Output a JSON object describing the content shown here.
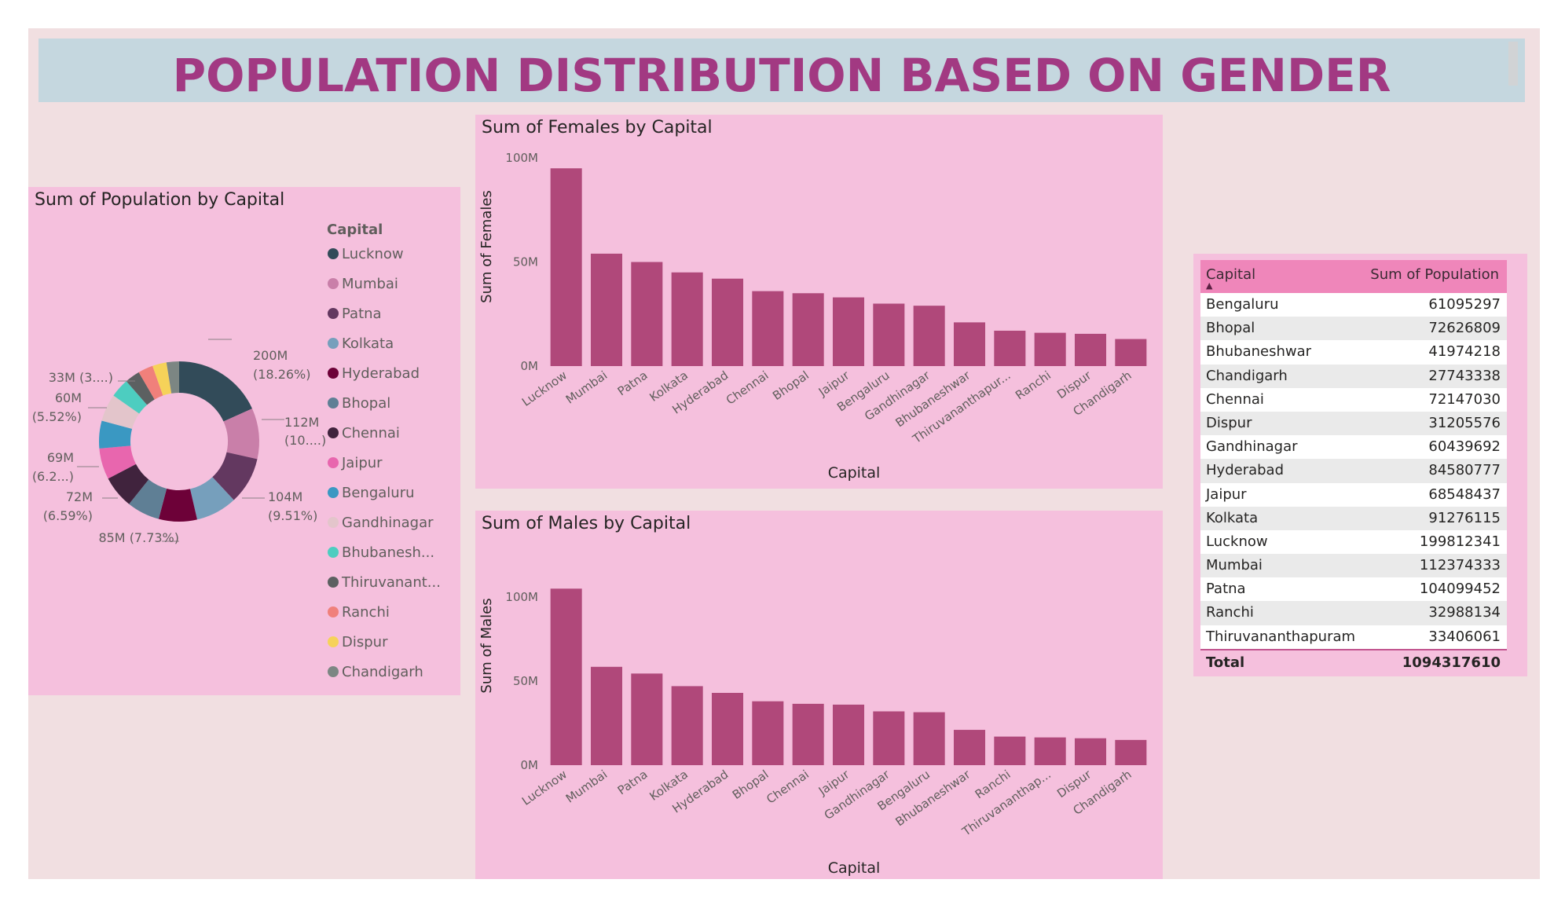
{
  "title": "POPULATION DISTRIBUTION BASED ON GENDER",
  "colors": {
    "bar": "#b0487a",
    "panel": "#f5c0dd",
    "canvas": "#f1dfe1",
    "title": "#a23982",
    "header": "#ef86ba"
  },
  "donut": {
    "title": "Sum of Population by Capital",
    "legend_title": "Capital"
  },
  "females": {
    "title": "Sum of Females by Capital",
    "xlabel": "Capital",
    "ylabel": "Sum of Females"
  },
  "males": {
    "title": "Sum of Males by Capital",
    "xlabel": "Capital",
    "ylabel": "Sum of Males"
  },
  "table": {
    "headers": [
      "Capital",
      "Sum of Population"
    ],
    "rows": [
      [
        "Bengaluru",
        "61095297"
      ],
      [
        "Bhopal",
        "72626809"
      ],
      [
        "Bhubaneshwar",
        "41974218"
      ],
      [
        "Chandigarh",
        "27743338"
      ],
      [
        "Chennai",
        "72147030"
      ],
      [
        "Dispur",
        "31205576"
      ],
      [
        "Gandhinagar",
        "60439692"
      ],
      [
        "Hyderabad",
        "84580777"
      ],
      [
        "Jaipur",
        "68548437"
      ],
      [
        "Kolkata",
        "91276115"
      ],
      [
        "Lucknow",
        "199812341"
      ],
      [
        "Mumbai",
        "112374333"
      ],
      [
        "Patna",
        "104099452"
      ],
      [
        "Ranchi",
        "32988134"
      ],
      [
        "Thiruvananthapuram",
        "33406061"
      ]
    ],
    "total_label": "Total",
    "total_value": "1094317610"
  },
  "chart_data": [
    {
      "type": "pie",
      "title": "Sum of Population by Capital",
      "legend_title": "Capital",
      "legend_placement": "right",
      "slices": [
        {
          "label": "Lucknow",
          "legend": "Lucknow",
          "value": 199812341,
          "color": "#324b59",
          "data_label": [
            "200M",
            "(18.26%)"
          ]
        },
        {
          "label": "Mumbai",
          "legend": "Mumbai",
          "value": 112374333,
          "color": "#c97fa9",
          "data_label": [
            "112M",
            "(10....)"
          ]
        },
        {
          "label": "Patna",
          "legend": "Patna",
          "value": 104099452,
          "color": "#633860",
          "data_label": [
            "104M",
            "(9.51%)"
          ]
        },
        {
          "label": "Kolkata",
          "legend": "Kolkata",
          "value": 91276115,
          "color": "#769fbc",
          "data_label": []
        },
        {
          "label": "Hyderabad",
          "legend": "Hyderabad",
          "value": 84580777,
          "color": "#6d0138",
          "data_label": [
            "85M (7.73%)"
          ]
        },
        {
          "label": "Bhopal",
          "legend": "Bhopal",
          "value": 72626809,
          "color": "#5f7f95",
          "data_label": []
        },
        {
          "label": "Chennai",
          "legend": "Chennai",
          "value": 72147030,
          "color": "#40233d",
          "data_label": [
            "72M",
            "(6.59%)"
          ]
        },
        {
          "label": "Jaipur",
          "legend": "Jaipur",
          "value": 68548437,
          "color": "#e866ae",
          "data_label": [
            "69M",
            "(6.2...)"
          ]
        },
        {
          "label": "Bengaluru",
          "legend": "Bengaluru",
          "value": 61095297,
          "color": "#3a98c2",
          "data_label": []
        },
        {
          "label": "Gandhinagar",
          "legend": "Gandhinagar",
          "value": 60439692,
          "color": "#e3c5cb",
          "data_label": [
            "60M",
            "(5.52%)"
          ]
        },
        {
          "label": "Bhubaneshwar",
          "legend": "Bhubanesh...",
          "value": 41974218,
          "color": "#4dcdc0",
          "data_label": []
        },
        {
          "label": "Thiruvananthapuram",
          "legend": "Thiruvanant...",
          "value": 33406061,
          "color": "#5c6061",
          "data_label": [
            "33M (3....)"
          ]
        },
        {
          "label": "Ranchi",
          "legend": "Ranchi",
          "value": 32988134,
          "color": "#f0807b",
          "data_label": []
        },
        {
          "label": "Dispur",
          "legend": "Dispur",
          "value": 31205576,
          "color": "#f6d259",
          "data_label": []
        },
        {
          "label": "Chandigarh",
          "legend": "Chandigarh",
          "value": 27743338,
          "color": "#7c8683",
          "data_label": []
        }
      ]
    },
    {
      "type": "bar",
      "title": "Sum of Females by Capital",
      "xlabel": "Capital",
      "ylabel": "Sum of Females",
      "ylim": [
        0,
        100000000
      ],
      "yticks": [
        {
          "v": 0,
          "label": "0M"
        },
        {
          "v": 50000000,
          "label": "50M"
        },
        {
          "v": 100000000,
          "label": "100M"
        }
      ],
      "categories": [
        "Lucknow",
        "Mumbai",
        "Patna",
        "Kolkata",
        "Hyderabad",
        "Chennai",
        "Bhopal",
        "Jaipur",
        "Bengaluru",
        "Gandhinagar",
        "Bhubaneshwar",
        "Thiruvananthapur...",
        "Ranchi",
        "Dispur",
        "Chandigarh"
      ],
      "values": [
        95000000,
        54000000,
        50000000,
        45000000,
        42000000,
        36000000,
        35000000,
        33000000,
        30000000,
        29000000,
        21000000,
        17000000,
        16000000,
        15500000,
        13000000
      ]
    },
    {
      "type": "bar",
      "title": "Sum of Males by Capital",
      "xlabel": "Capital",
      "ylabel": "Sum of Males",
      "ylim": [
        0,
        100000000
      ],
      "yticks": [
        {
          "v": 0,
          "label": "0M"
        },
        {
          "v": 50000000,
          "label": "50M"
        },
        {
          "v": 100000000,
          "label": "100M"
        }
      ],
      "categories": [
        "Lucknow",
        "Mumbai",
        "Patna",
        "Kolkata",
        "Hyderabad",
        "Bhopal",
        "Chennai",
        "Jaipur",
        "Gandhinagar",
        "Bengaluru",
        "Bhubaneshwar",
        "Ranchi",
        "Thiruvananthap...",
        "Dispur",
        "Chandigarh"
      ],
      "values": [
        105000000,
        58500000,
        54500000,
        47000000,
        43000000,
        38000000,
        36500000,
        36000000,
        32000000,
        31500000,
        21000000,
        17000000,
        16500000,
        16000000,
        15000000
      ]
    }
  ]
}
